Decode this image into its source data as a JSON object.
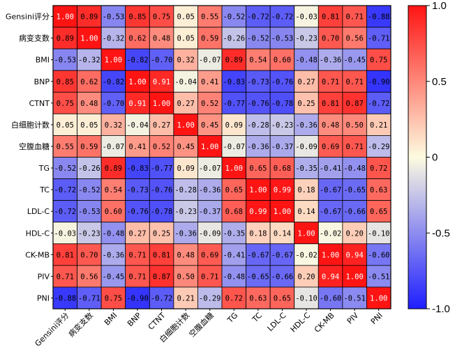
{
  "chart_data": {
    "type": "heatmap",
    "title": "",
    "xlabel": "",
    "ylabel": "",
    "labels": [
      "Gensini评分",
      "病变支数",
      "BMI",
      "BNP",
      "CTNT",
      "白细胞计数",
      "空腹血糖",
      "TG",
      "TC",
      "LDL-C",
      "HDL-C",
      "CK-MB",
      "PIV",
      "PNI"
    ],
    "matrix": [
      [
        "1.00",
        "0.89",
        "-0.53",
        "0.85",
        "0.75",
        "0.05",
        "0.55",
        "-0.52",
        "-0.72",
        "-0.72",
        "-0.03",
        "0.81",
        "0.71",
        "-0.88"
      ],
      [
        "0.89",
        "1.00",
        "-0.32",
        "0.62",
        "0.48",
        "0.05",
        "0.59",
        "-0.26",
        "-0.52",
        "-0.53",
        "-0.23",
        "0.70",
        "0.56",
        "-0.71"
      ],
      [
        "-0.53",
        "-0.32",
        "1.00",
        "-0.82",
        "-0.70",
        "0.32",
        "-0.07",
        "0.89",
        "0.54",
        "0.60",
        "-0.48",
        "-0.36",
        "-0.45",
        "0.75"
      ],
      [
        "0.85",
        "0.62",
        "-0.82",
        "1.00",
        "0.91",
        "-0.04",
        "0.41",
        "-0.83",
        "-0.73",
        "-0.76",
        "0.27",
        "0.71",
        "0.71",
        "-0.90"
      ],
      [
        "0.75",
        "0.48",
        "-0.70",
        "0.91",
        "1.00",
        "0.27",
        "0.52",
        "-0.77",
        "-0.76",
        "-0.78",
        "0.25",
        "0.81",
        "0.87",
        "-0.72"
      ],
      [
        "0.05",
        "0.05",
        "0.32",
        "-0.04",
        "0.27",
        "1.00",
        "0.45",
        "0.09",
        "-0.28",
        "-0.23",
        "-0.36",
        "0.48",
        "0.50",
        "0.21"
      ],
      [
        "0.55",
        "0.59",
        "-0.07",
        "0.41",
        "0.52",
        "0.45",
        "1.00",
        "-0.07",
        "-0.36",
        "-0.37",
        "-0.09",
        "0.69",
        "0.71",
        "-0.29"
      ],
      [
        "-0.52",
        "-0.26",
        "0.89",
        "-0.83",
        "-0.77",
        "0.09",
        "-0.07",
        "1.00",
        "0.65",
        "0.68",
        "-0.35",
        "-0.41",
        "-0.48",
        "0.72"
      ],
      [
        "-0.72",
        "-0.52",
        "0.54",
        "-0.73",
        "-0.76",
        "-0.28",
        "-0.36",
        "0.65",
        "1.00",
        "0.99",
        "0.18",
        "-0.67",
        "-0.65",
        "0.63"
      ],
      [
        "-0.72",
        "-0.53",
        "0.60",
        "-0.76",
        "-0.78",
        "-0.23",
        "-0.37",
        "0.68",
        "0.99",
        "1.00",
        "0.14",
        "-0.67",
        "-0.66",
        "0.65"
      ],
      [
        "-0.03",
        "-0.23",
        "-0.48",
        "0.27",
        "0.25",
        "-0.36",
        "-0.09",
        "-0.35",
        "0.18",
        "0.14",
        "1.00",
        "-0.02",
        "0.20",
        "-0.10"
      ],
      [
        "0.81",
        "0.70",
        "-0.36",
        "0.71",
        "0.81",
        "0.48",
        "0.69",
        "-0.41",
        "-0.67",
        "-0.67",
        "-0.02",
        "1.00",
        "0.94",
        "-0.60"
      ],
      [
        "0.71",
        "0.56",
        "-0.45",
        "0.71",
        "0.87",
        "0.50",
        "0.71",
        "-0.48",
        "-0.65",
        "-0.66",
        "0.20",
        "0.94",
        "1.00",
        "-0.51"
      ],
      [
        "-0.88",
        "-0.71",
        "0.75",
        "-0.90",
        "-0.72",
        "0.21",
        "-0.29",
        "0.72",
        "0.63",
        "0.65",
        "-0.10",
        "-0.60",
        "-0.51",
        "1.00"
      ]
    ],
    "colorbar": {
      "min": -1.0,
      "max": 1.0,
      "ticks": [
        "1.0",
        "0.5",
        "0",
        "-0.5",
        "-1.0"
      ],
      "colors": {
        "low": "#1e1eff",
        "mid": "#fdfbe0",
        "high": "#ff1414"
      }
    }
  }
}
